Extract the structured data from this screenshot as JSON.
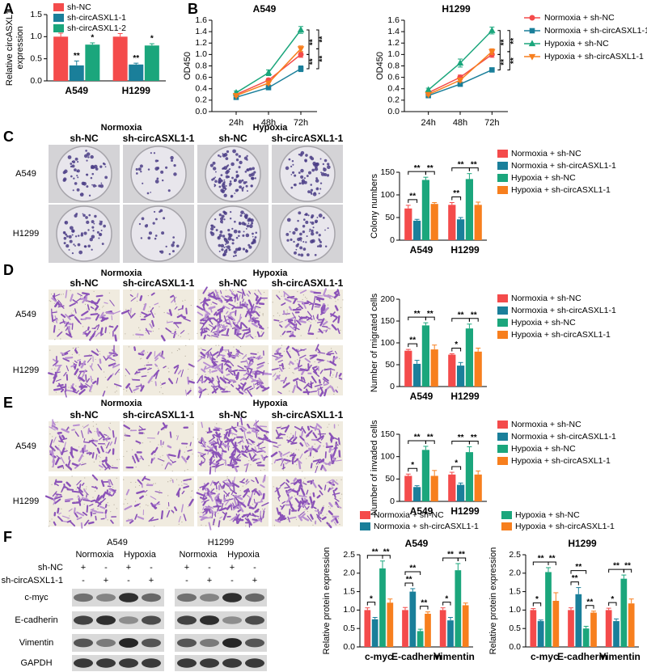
{
  "panel_labels": [
    "A",
    "B",
    "C",
    "D",
    "E",
    "F"
  ],
  "chart_data": [
    {
      "type": "bar",
      "ylabel": "Relative circASXL1 expression",
      "categories": [
        "A549",
        "H1299"
      ],
      "series": [
        {
          "name": "sh-NC",
          "color": "#f44b4b",
          "values": [
            1.0,
            1.0
          ],
          "errors": [
            0.08,
            0.07
          ]
        },
        {
          "name": "sh-circASXL1-1",
          "color": "#1a7f9a",
          "values": [
            0.35,
            0.37
          ],
          "errors": [
            0.1,
            0.03
          ],
          "significance": [
            "**",
            "**"
          ]
        },
        {
          "name": "sh-circASXL1-2",
          "color": "#1ba67c",
          "values": [
            0.82,
            0.8
          ],
          "errors": [
            0.04,
            0.04
          ],
          "significance": [
            "*",
            "*"
          ]
        }
      ],
      "ylim": [
        0,
        1.5
      ],
      "yticks": [
        {
          "value": 0,
          "label": "0.0"
        },
        0.5,
        {
          "value": 1,
          "label": "1.0"
        },
        1.5
      ],
      "legend": "top-left"
    },
    {
      "type": "line",
      "title": "A549",
      "ylabel": "OD450",
      "categories": [
        "24h",
        "48h",
        "72h"
      ],
      "series": [
        {
          "color": "#f44b4b",
          "values": [
            0.3,
            0.55,
            1.0
          ],
          "errors": [
            0.02,
            0.03,
            0.05
          ]
        },
        {
          "color": "#1a7f9a",
          "values": [
            0.25,
            0.42,
            0.75
          ],
          "errors": [
            0.02,
            0.02,
            0.05
          ]
        },
        {
          "color": "#1ba67c",
          "values": [
            0.33,
            0.68,
            1.43
          ],
          "errors": [
            0.03,
            0.05,
            0.06
          ]
        },
        {
          "color": "#f77f1e",
          "values": [
            0.28,
            0.5,
            1.1
          ],
          "errors": [
            0.02,
            0.03,
            0.05
          ]
        }
      ],
      "ylim": [
        0,
        1.6
      ],
      "yticks": [
        {
          "value": 0,
          "label": "0.0"
        },
        0.2,
        0.4,
        0.6,
        0.8,
        {
          "value": 1,
          "label": "1.0"
        },
        1.2,
        1.4,
        1.6
      ],
      "annotations": [
        "**",
        "**",
        "**",
        "**"
      ],
      "legend": "none"
    },
    {
      "type": "line",
      "title": "H1299",
      "ylabel": "OD450",
      "categories": [
        "24h",
        "48h",
        "72h"
      ],
      "series": [
        {
          "name": "Normoxia + sh-NC",
          "color": "#f44b4b",
          "values": [
            0.33,
            0.6,
            1.0
          ],
          "errors": [
            0.02,
            0.04,
            0.05
          ]
        },
        {
          "name": "Normoxia + sh-circASXL1-1",
          "color": "#1a7f9a",
          "values": [
            0.28,
            0.48,
            0.73
          ],
          "errors": [
            0.02,
            0.02,
            0.03
          ]
        },
        {
          "name": "Hypoxia + sh-NC",
          "color": "#1ba67c",
          "values": [
            0.38,
            0.85,
            1.42
          ],
          "errors": [
            0.03,
            0.07,
            0.06
          ]
        },
        {
          "name": "Hypoxia + sh-circASXL1-1",
          "color": "#f77f1e",
          "values": [
            0.3,
            0.55,
            1.05
          ],
          "errors": [
            0.02,
            0.03,
            0.05
          ]
        }
      ],
      "ylim": [
        0,
        1.6
      ],
      "yticks": [
        {
          "value": 0,
          "label": "0.0"
        },
        0.2,
        0.4,
        0.6,
        0.8,
        {
          "value": 1,
          "label": "1.0"
        },
        1.2,
        1.4,
        1.6
      ],
      "annotations": [
        "**",
        "**",
        "**",
        "**"
      ],
      "legend": "right"
    },
    {
      "type": "bar",
      "ylabel": "Colony numbers",
      "categories": [
        "A549",
        "H1299"
      ],
      "series": [
        {
          "name": "Normoxia + sh-NC",
          "color": "#f44b4b",
          "values": [
            70,
            78
          ],
          "errors": [
            7,
            5
          ]
        },
        {
          "name": "Normoxia + sh-circASXL1-1",
          "color": "#1a7f9a",
          "values": [
            43,
            46
          ],
          "errors": [
            3,
            4
          ]
        },
        {
          "name": "Hypoxia + sh-NC",
          "color": "#1ba67c",
          "values": [
            133,
            135
          ],
          "errors": [
            6,
            12
          ]
        },
        {
          "name": "Hypoxia + sh-circASXL1-1",
          "color": "#f77f1e",
          "values": [
            80,
            78
          ],
          "errors": [
            3,
            6
          ]
        }
      ],
      "brackets": [
        [
          "**",
          "**",
          "**"
        ],
        [
          "**",
          "**",
          "**"
        ]
      ],
      "ylim": [
        0,
        150
      ],
      "yticks": [
        0,
        50,
        100,
        150
      ],
      "legend": "right"
    },
    {
      "type": "bar",
      "ylabel": "Number of migrated cells",
      "categories": [
        "A549",
        "H1299"
      ],
      "series": [
        {
          "name": "Normoxia + sh-NC",
          "color": "#f44b4b",
          "values": [
            82,
            73
          ],
          "errors": [
            3,
            2
          ]
        },
        {
          "name": "Normoxia + sh-circASXL1-1",
          "color": "#1a7f9a",
          "values": [
            52,
            48
          ],
          "errors": [
            8,
            7
          ]
        },
        {
          "name": "Hypoxia + sh-NC",
          "color": "#1ba67c",
          "values": [
            140,
            133
          ],
          "errors": [
            6,
            10
          ]
        },
        {
          "name": "Hypoxia + sh-circASXL1-1",
          "color": "#f77f1e",
          "values": [
            85,
            80
          ],
          "errors": [
            10,
            8
          ]
        }
      ],
      "brackets": [
        [
          "**",
          "**",
          "**"
        ],
        [
          "*",
          "**",
          "**"
        ]
      ],
      "ylim": [
        0,
        200
      ],
      "yticks": [
        0,
        50,
        100,
        150,
        200
      ],
      "legend": "right"
    },
    {
      "type": "bar",
      "ylabel": "Number of invaded cells",
      "categories": [
        "A549",
        "H1299"
      ],
      "series": [
        {
          "name": "Normoxia + sh-NC",
          "color": "#f44b4b",
          "values": [
            57,
            60
          ],
          "errors": [
            4,
            5
          ]
        },
        {
          "name": "Normoxia + sh-circASXL1-1",
          "color": "#1a7f9a",
          "values": [
            32,
            37
          ],
          "errors": [
            3,
            4
          ]
        },
        {
          "name": "Hypoxia + sh-NC",
          "color": "#1ba67c",
          "values": [
            115,
            110
          ],
          "errors": [
            8,
            12
          ]
        },
        {
          "name": "Hypoxia + sh-circASXL1-1",
          "color": "#f77f1e",
          "values": [
            57,
            60
          ],
          "errors": [
            12,
            8
          ]
        }
      ],
      "brackets": [
        [
          "*",
          "**",
          "**"
        ],
        [
          "*",
          "**",
          "**"
        ]
      ],
      "ylim": [
        0,
        150
      ],
      "yticks": [
        0,
        50,
        100,
        150
      ],
      "legend": "right"
    },
    {
      "type": "bar",
      "title": "A549",
      "ylabel": "Relative protein expression",
      "categories": [
        "c-myc",
        "E-cadherin",
        "Vimentin"
      ],
      "series": [
        {
          "name": "Normoxia + sh-NC",
          "color": "#f44b4b",
          "values": [
            1.0,
            1.0,
            1.0
          ],
          "errors": [
            0.06,
            0.07,
            0.06
          ]
        },
        {
          "name": "Normoxia + sh-circASXL1-1",
          "color": "#1a7f9a",
          "values": [
            0.75,
            1.5,
            0.72
          ],
          "errors": [
            0.05,
            0.08,
            0.08
          ]
        },
        {
          "name": "Hypoxia + sh-NC",
          "color": "#1ba67c",
          "values": [
            2.13,
            0.43,
            2.08
          ],
          "errors": [
            0.2,
            0.05,
            0.18
          ]
        },
        {
          "name": "Hypoxia + sh-circASXL1-1",
          "color": "#f77f1e",
          "values": [
            1.2,
            0.9,
            1.13
          ],
          "errors": [
            0.1,
            0.05,
            0.06
          ]
        }
      ],
      "brackets": [
        [
          "*",
          "**",
          "**"
        ],
        [
          "**",
          "**",
          "**"
        ],
        [
          "*",
          "**",
          "**"
        ]
      ],
      "ylim": [
        0,
        2.5
      ],
      "yticks": [
        {
          "value": 0,
          "label": "0.0"
        },
        0.5,
        {
          "value": 1,
          "label": "1.0"
        },
        1.5,
        {
          "value": 2,
          "label": "2.0"
        },
        2.5
      ],
      "legend": "top"
    },
    {
      "type": "bar",
      "title": "H1299",
      "ylabel": "Relative protein expression",
      "categories": [
        "c-myc",
        "E-cadherin",
        "Vimentin"
      ],
      "series": [
        {
          "color": "#f44b4b",
          "values": [
            1.0,
            1.0,
            1.0
          ],
          "errors": [
            0.04,
            0.06,
            0.05
          ]
        },
        {
          "color": "#1a7f9a",
          "values": [
            0.7,
            1.43,
            0.7
          ],
          "errors": [
            0.03,
            0.18,
            0.06
          ]
        },
        {
          "color": "#1ba67c",
          "values": [
            2.03,
            0.5,
            1.85
          ],
          "errors": [
            0.12,
            0.06,
            0.1
          ]
        },
        {
          "color": "#f77f1e",
          "values": [
            1.25,
            0.93,
            1.18
          ],
          "errors": [
            0.22,
            0.04,
            0.12
          ]
        }
      ],
      "brackets": [
        [
          "*",
          "**",
          "**"
        ],
        [
          "**",
          "**",
          "**"
        ],
        [
          "*",
          "**",
          "**"
        ]
      ],
      "ylim": [
        0,
        2.5
      ],
      "yticks": [
        {
          "value": 0,
          "label": "0.0"
        },
        0.5,
        {
          "value": 1,
          "label": "1.0"
        },
        1.5,
        {
          "value": 2,
          "label": "2.0"
        },
        2.5
      ],
      "legend": "none"
    }
  ],
  "colony_images": {
    "conditions": [
      "Normoxia",
      "Hypoxia"
    ],
    "columns": [
      "sh-NC",
      "sh-circASXL1-1",
      "sh-NC",
      "sh-circASXL1-1"
    ],
    "rows": [
      "A549",
      "H1299"
    ]
  },
  "migration_images": {
    "conditions": [
      "Normoxia",
      "Hypoxia"
    ],
    "columns": [
      "sh-NC",
      "sh-circASXL1-1",
      "sh-NC",
      "sh-circASXL1-1"
    ],
    "rows": [
      "A549",
      "H1299"
    ]
  },
  "invasion_images": {
    "conditions": [
      "Normoxia",
      "Hypoxia"
    ],
    "columns": [
      "sh-NC",
      "sh-circASXL1-1",
      "sh-NC",
      "sh-circASXL1-1"
    ],
    "rows": [
      "A549",
      "H1299"
    ]
  },
  "western_blot": {
    "cell_lines": [
      "A549",
      "H1299"
    ],
    "conditions": [
      "Normoxia",
      "Hypoxia"
    ],
    "treatments": [
      {
        "name": "sh-NC",
        "signs": [
          "+",
          "-",
          "+",
          "-"
        ]
      },
      {
        "name": "sh-circASXL1-1",
        "signs": [
          "-",
          "+",
          "-",
          "+"
        ]
      }
    ],
    "proteins": [
      "c-myc",
      "E-cadherin",
      "Vimentin",
      "GAPDH"
    ]
  }
}
